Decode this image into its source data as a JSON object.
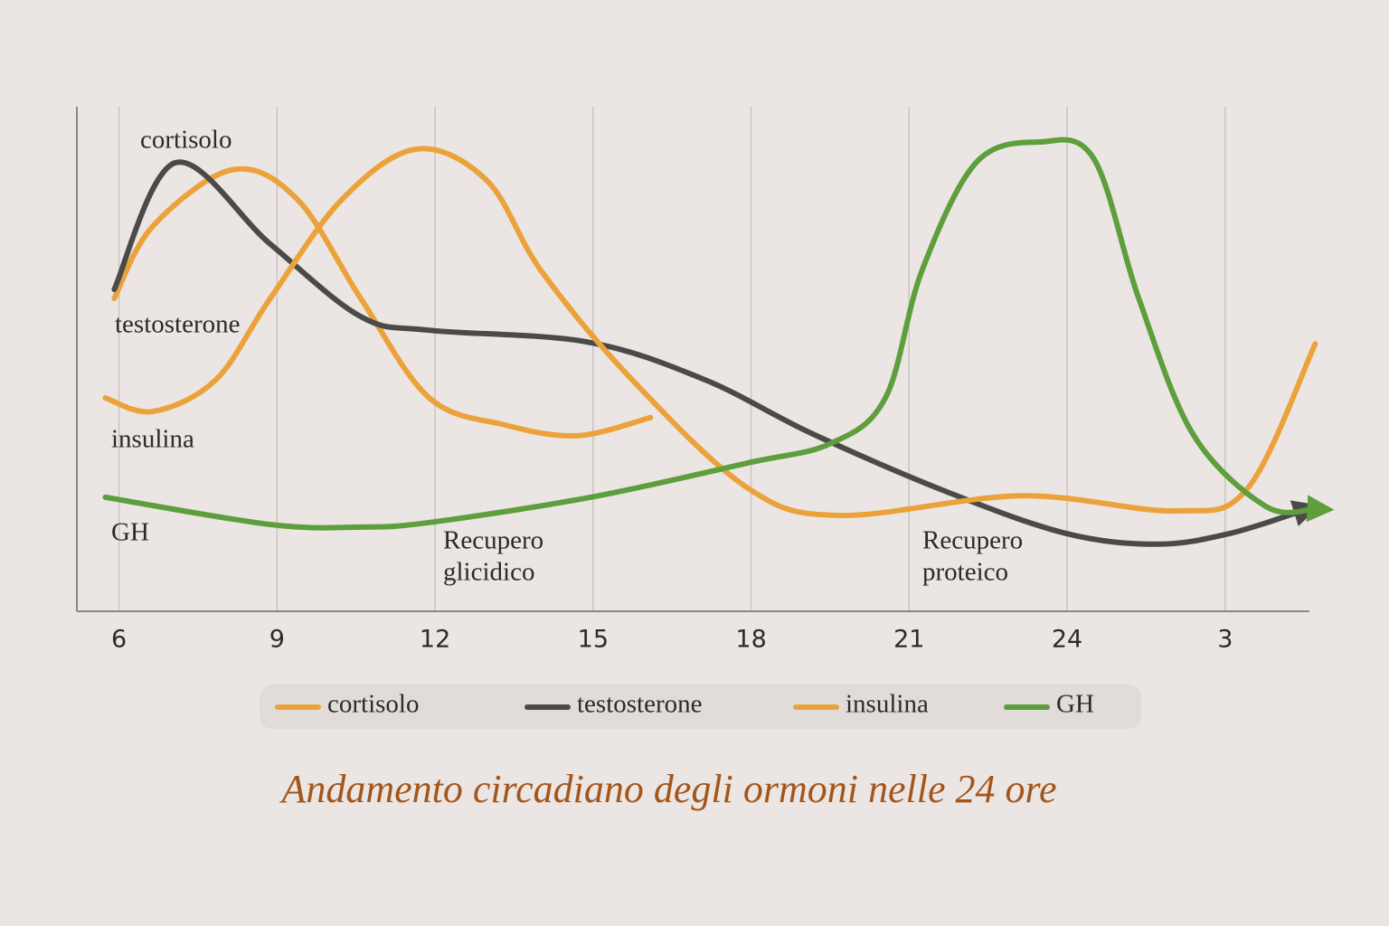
{
  "chart_data": {
    "type": "line",
    "title": "Andamento circadiano degli ormoni nelle 24 ore",
    "xlim": [
      5.2,
      28.6
    ],
    "xticks": [
      6,
      9,
      12,
      15,
      18,
      21,
      24,
      {
        "value": 27,
        "label": "3"
      }
    ],
    "ylim": [
      0,
      100
    ],
    "grid": true,
    "series": [
      {
        "name": "cortisolo",
        "color": "#eba23a",
        "arrow": false,
        "x": [
          5.91,
          6.64,
          8.15,
          9.38,
          10.59,
          11.89,
          13.34,
          14.71,
          16.09
        ],
        "values": [
          62.0,
          76.3,
          87.5,
          81.7,
          62.0,
          42.3,
          36.9,
          34.8,
          38.4
        ]
      },
      {
        "name": "testosterone",
        "color": "#4a4a48",
        "arrow": true,
        "x": [
          5.91,
          7.07,
          8.87,
          10.59,
          11.89,
          14.88,
          17.12,
          19.18,
          21.76,
          23.99,
          25.71,
          27.08,
          28.46
        ],
        "values": [
          63.8,
          88.9,
          72.8,
          58.4,
          55.7,
          53.4,
          45.9,
          35.1,
          23.5,
          15.4,
          13.3,
          15.4,
          19.9
        ]
      },
      {
        "name": "insulina",
        "color": "#eba23a",
        "arrow": false,
        "x": [
          5.74,
          6.64,
          7.84,
          8.87,
          10.24,
          11.65,
          12.99,
          14.02,
          15.74,
          17.94,
          19.69,
          23.13,
          26.05,
          27.43,
          28.71
        ],
        "values": [
          42.3,
          39.6,
          45.9,
          62.0,
          81.7,
          91.6,
          85.3,
          67.4,
          45.9,
          24.4,
          19.0,
          22.9,
          19.9,
          24.4,
          53.0
        ]
      },
      {
        "name": "GH",
        "color": "#5e9e3c",
        "arrow": true,
        "x": [
          5.74,
          8.87,
          10.59,
          11.89,
          14.95,
          17.94,
          19.52,
          20.55,
          21.24,
          22.27,
          23.47,
          24.5,
          25.36,
          26.39,
          27.77,
          28.71
        ],
        "values": [
          22.6,
          17.2,
          16.7,
          17.6,
          22.6,
          29.4,
          33.3,
          42.3,
          67.4,
          88.9,
          93.0,
          89.8,
          62.0,
          35.1,
          20.8,
          20.3
        ]
      }
    ],
    "annotations": [
      [
        "Recupero",
        "glicidico"
      ],
      [
        "Recupero",
        "proteico"
      ]
    ]
  }
}
